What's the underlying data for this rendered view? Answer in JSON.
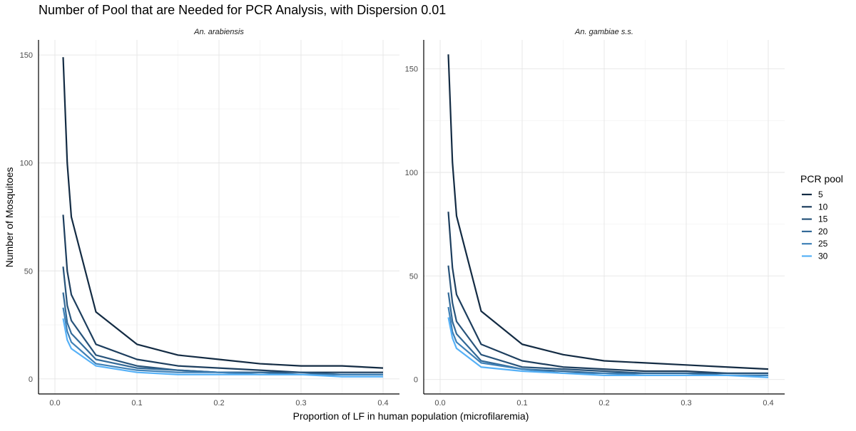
{
  "chart_data": {
    "type": "line",
    "title": "Number of Pool that are Needed for PCR Analysis, with Dispersion 0.01",
    "xlabel": "Proportion of LF in human population (microfilaremia)",
    "ylabel": "Number of Mosquitoes",
    "legend": {
      "title": "PCR pool",
      "placement": "right",
      "entries": [
        "5",
        "10",
        "15",
        "20",
        "25",
        "30"
      ]
    },
    "grid": true,
    "x": [
      0.01,
      0.015,
      0.02,
      0.05,
      0.1,
      0.15,
      0.2,
      0.25,
      0.3,
      0.35,
      0.4
    ],
    "x_ticks": [
      "0.0",
      "0.1",
      "0.2",
      "0.3",
      "0.4"
    ],
    "xlim": [
      -0.02,
      0.42
    ],
    "colors": [
      "#132b43",
      "#1d3e5e",
      "#28547b",
      "#336a98",
      "#3f81b7",
      "#56b1f7"
    ],
    "panels": [
      {
        "strip": "An. arabiensis",
        "ylim": [
          -7,
          157
        ],
        "y_ticks": [
          "0",
          "50",
          "100",
          "150"
        ],
        "series": [
          {
            "name": "5",
            "values": [
              149,
              100,
              75,
              31,
              16,
              11,
              9,
              7,
              6,
              6,
              5
            ]
          },
          {
            "name": "10",
            "values": [
              76,
              50,
              39,
              16,
              9,
              6,
              5,
              4,
              3,
              3,
              3
            ]
          },
          {
            "name": "15",
            "values": [
              52,
              34,
              27,
              11,
              6,
              4,
              3,
              3,
              3,
              2,
              2
            ]
          },
          {
            "name": "20",
            "values": [
              40,
              26,
              21,
              9,
              5,
              4,
              3,
              3,
              2,
              2,
              2
            ]
          },
          {
            "name": "25",
            "values": [
              33,
              22,
              17,
              7,
              4,
              3,
              3,
              2,
              2,
              2,
              2
            ]
          },
          {
            "name": "30",
            "values": [
              28,
              18,
              14,
              6,
              3,
              2,
              2,
              2,
              2,
              1,
              1
            ]
          }
        ]
      },
      {
        "strip": "An. gambiae s.s.",
        "ylim": [
          -7,
          164
        ],
        "y_ticks": [
          "0",
          "50",
          "100",
          "150"
        ],
        "series": [
          {
            "name": "5",
            "values": [
              157,
              105,
              79,
              33,
              17,
              12,
              9,
              8,
              7,
              6,
              5
            ]
          },
          {
            "name": "10",
            "values": [
              81,
              54,
              41,
              17,
              9,
              6,
              5,
              4,
              4,
              3,
              3
            ]
          },
          {
            "name": "15",
            "values": [
              55,
              37,
              28,
              12,
              6,
              5,
              4,
              3,
              3,
              3,
              3
            ]
          },
          {
            "name": "20",
            "values": [
              42,
              28,
              22,
              9,
              5,
              4,
              3,
              3,
              3,
              2,
              2
            ]
          },
          {
            "name": "25",
            "values": [
              35,
              23,
              18,
              8,
              5,
              3,
              3,
              2,
              2,
              2,
              2
            ]
          },
          {
            "name": "30",
            "values": [
              30,
              20,
              15,
              6,
              4,
              3,
              2,
              2,
              2,
              2,
              1
            ]
          }
        ]
      }
    ]
  }
}
